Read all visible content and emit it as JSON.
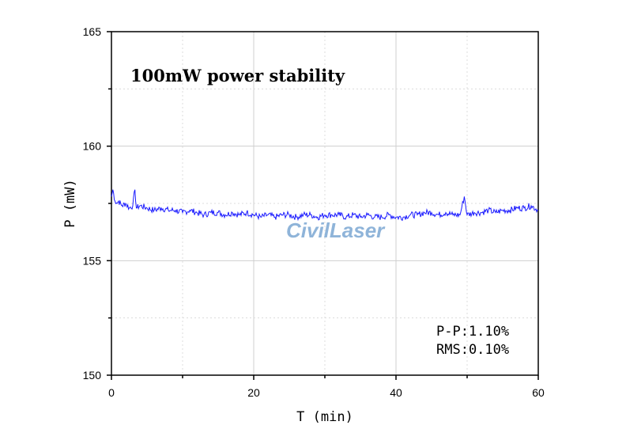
{
  "chart_data": {
    "type": "line",
    "title": "100mW power stability",
    "xlabel": "T (min)",
    "ylabel": "P (mW)",
    "xlim": [
      0,
      60
    ],
    "ylim": [
      150,
      165
    ],
    "x_ticks": [
      "0",
      "20",
      "40",
      "60"
    ],
    "y_ticks": [
      "150",
      "155",
      "160",
      "165"
    ],
    "grid": true,
    "line_color": "#1a1aff",
    "series": [
      {
        "x": [
          0,
          0.2,
          0.5,
          0.8,
          1,
          1.5,
          2,
          2.5,
          3,
          3.3,
          3.5,
          4,
          5,
          6,
          7,
          8,
          9,
          10,
          11,
          12,
          13,
          14,
          15,
          16,
          17,
          18,
          19,
          20,
          21,
          22,
          23,
          24,
          25,
          26,
          27,
          28,
          29,
          30,
          31,
          32,
          33,
          34,
          35,
          36,
          37,
          38,
          39,
          40,
          41,
          42,
          43,
          44,
          45,
          46,
          47,
          48,
          49,
          49.6,
          50,
          51,
          52,
          53,
          54,
          55,
          56,
          57,
          58,
          59,
          60
        ],
        "values": [
          157.8,
          158.1,
          157.6,
          157.5,
          157.6,
          157.4,
          157.5,
          157.3,
          157.4,
          158.1,
          157.3,
          157.4,
          157.3,
          157.2,
          157.3,
          157.2,
          157.2,
          157.1,
          157.2,
          157.1,
          157.0,
          157.1,
          157.1,
          157.0,
          157.1,
          157.0,
          157.1,
          157.0,
          156.9,
          157.0,
          156.9,
          157.0,
          157.0,
          156.9,
          157.0,
          157.0,
          156.9,
          157.0,
          157.0,
          157.0,
          156.9,
          157.0,
          156.9,
          157.0,
          156.9,
          156.9,
          157.0,
          156.9,
          156.9,
          157.0,
          157.0,
          157.1,
          157.1,
          157.0,
          157.1,
          157.0,
          157.0,
          157.8,
          157.0,
          157.1,
          157.1,
          157.2,
          157.1,
          157.2,
          157.2,
          157.3,
          157.3,
          157.4,
          157.2
        ]
      }
    ],
    "annotations": {
      "pp": "P-P:1.10%",
      "rms": "RMS:0.10%"
    },
    "watermark": "CivilLaser"
  }
}
